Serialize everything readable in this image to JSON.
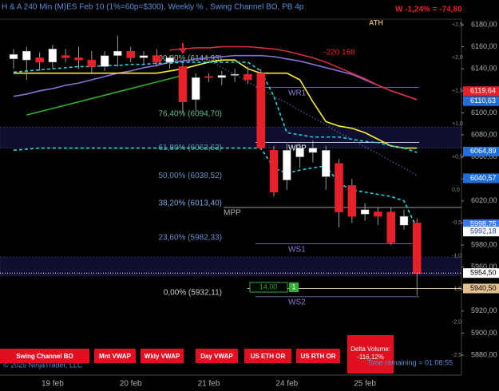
{
  "header": {
    "title": "H & A 240 Min (M)ES Feb 10  (1%=60p=$300), Weekly % , Swing Channel BO, PB 4p",
    "weekly_change": "W -1,24% = -74,80",
    "ath": "ATH"
  },
  "price_axis": {
    "ylim": [
      5880,
      6180
    ],
    "yticks": [
      {
        "value": 6180,
        "label": "6180,00"
      },
      {
        "value": 6160,
        "label": "6160,00"
      },
      {
        "value": 6140,
        "label": "6140,00"
      },
      {
        "value": 6120,
        "label": "6120,00"
      },
      {
        "value": 6100,
        "label": "6100,00"
      },
      {
        "value": 6080,
        "label": "6080,00"
      },
      {
        "value": 6060,
        "label": "6060,00"
      },
      {
        "value": 6040,
        "label": "6040,00"
      },
      {
        "value": 6020,
        "label": "6020,00"
      },
      {
        "value": 6000,
        "label": "6000,00"
      },
      {
        "value": 5980,
        "label": "5980,00"
      },
      {
        "value": 5960,
        "label": "5960,00"
      },
      {
        "value": 5940,
        "label": "5940,00"
      },
      {
        "value": 5920,
        "label": "5920,00"
      },
      {
        "value": 5900,
        "label": "5900,00"
      },
      {
        "value": 5880,
        "label": "5880,00"
      }
    ]
  },
  "percent_axis": {
    "lim": [
      -2.5,
      2.5
    ],
    "ticks": [
      {
        "value": 2.5,
        "label": "+2,5"
      },
      {
        "value": 2,
        "label": "+2,0"
      },
      {
        "value": 1.5,
        "label": "+1,5"
      },
      {
        "value": 1,
        "label": "+1,0"
      },
      {
        "value": 0.5,
        "label": "+0,5"
      },
      {
        "value": 0,
        "label": "0,0"
      },
      {
        "value": -0.5,
        "label": "-0,5"
      },
      {
        "value": -1,
        "label": "-1,0"
      },
      {
        "value": -1.5,
        "label": "-1,5"
      },
      {
        "value": -2,
        "label": "-2,0"
      },
      {
        "value": -2.5,
        "label": "-2,5"
      }
    ]
  },
  "price_tags": [
    {
      "value": 6119.64,
      "label": "6119,64",
      "color": "#e8202a",
      "text_color": "#ffffff"
    },
    {
      "value": 6110.63,
      "label": "6110,63",
      "color": "#1f6fdb",
      "text_color": "#ffffff"
    },
    {
      "value": 6064.89,
      "label": "6064,89",
      "color": "#1f6fdb",
      "text_color": "#ffffff"
    },
    {
      "value": 6040.57,
      "label": "6040,57",
      "color": "#1f6fdb",
      "text_color": "#ffffff"
    },
    {
      "value": 5998.75,
      "label": "5998,75",
      "color": "#3a7be8",
      "text_color": "#ffffff"
    },
    {
      "value": 5992.18,
      "label": "5992,18",
      "color": "#ffffff",
      "text_color": "#1f3f8f"
    },
    {
      "value": 5954.5,
      "label": "5954,50",
      "color": "#ffffff",
      "text_color": "#000000",
      "line": "dotted"
    },
    {
      "value": 5940.5,
      "label": "5940,50",
      "color": "#e3c08f",
      "text_color": "#000000",
      "line": "solid"
    }
  ],
  "fib_levels": [
    {
      "label": "100,00% (6144,93)",
      "value": 6144.93,
      "color": "#8fbf9f"
    },
    {
      "label": "76,40% (6094,70)",
      "value": 6094.7,
      "color": "#5fbf8f"
    },
    {
      "label": "61,80% (6063,63)",
      "value": 6063.63,
      "color": "#4fa8a0"
    },
    {
      "label": "50,00% (6038,52)",
      "value": 6038.52,
      "color": "#6c8ebf"
    },
    {
      "label": "38,20% (6013,40)",
      "value": 6013.4,
      "color": "#7ea6e0"
    },
    {
      "label": "23,60% (5982,33)",
      "value": 5982.33,
      "color": "#6a8fd0"
    },
    {
      "label": "0,00% (5932,11)",
      "value": 5932.11,
      "color": "#d0d0d0"
    }
  ],
  "pivots": [
    {
      "label": "WR1",
      "value": 6123,
      "color": "#8a7fd6"
    },
    {
      "label": "WPP",
      "value": 6073,
      "color": "#ffffff"
    },
    {
      "label": "MPP",
      "value": 6014,
      "color": "#b0b0b0"
    },
    {
      "label": "WS1",
      "value": 5981,
      "color": "#8a7fd6"
    },
    {
      "label": "WS2",
      "value": 5933,
      "color": "#8a7fd6"
    }
  ],
  "zones": [
    {
      "top": 6087,
      "bottom": 6068
    },
    {
      "top": 5969,
      "bottom": 5952
    }
  ],
  "x_axis": {
    "categories": [
      null,
      null,
      null,
      "19 feb",
      null,
      null,
      null,
      null,
      null,
      "20 feb",
      null,
      null,
      null,
      null,
      null,
      "21 feb",
      null,
      null,
      null,
      null,
      null,
      "24 feb",
      null,
      null,
      null,
      null,
      null,
      "25 feb",
      null,
      null,
      null,
      null
    ]
  },
  "candles": [
    {
      "open": 6149,
      "high": 6158,
      "low": 6140,
      "close": 6153
    },
    {
      "open": 6148,
      "high": 6160,
      "low": 6130,
      "close": 6156
    },
    {
      "open": 6150,
      "high": 6155,
      "low": 6138,
      "close": 6146
    },
    {
      "open": 6146,
      "high": 6162,
      "low": 6140,
      "close": 6158
    },
    {
      "open": 6152,
      "high": 6158,
      "low": 6146,
      "close": 6150
    },
    {
      "open": 6150,
      "high": 6160,
      "low": 6140,
      "close": 6148
    },
    {
      "open": 6148,
      "high": 6156,
      "low": 6135,
      "close": 6142
    },
    {
      "open": 6142,
      "high": 6156,
      "low": 6138,
      "close": 6152
    },
    {
      "open": 6152,
      "high": 6170,
      "low": 6142,
      "close": 6156
    },
    {
      "open": 6156,
      "high": 6160,
      "low": 6146,
      "close": 6150
    },
    {
      "open": 6150,
      "high": 6156,
      "low": 6144,
      "close": 6152
    },
    {
      "open": 6152,
      "high": 6158,
      "low": 6142,
      "close": 6146
    },
    {
      "open": 6146,
      "high": 6152,
      "low": 6140,
      "close": 6150
    },
    {
      "open": 6142,
      "high": 6146,
      "low": 6100,
      "close": 6110
    },
    {
      "open": 6112,
      "high": 6136,
      "low": 6102,
      "close": 6132
    },
    {
      "open": 6133,
      "high": 6136,
      "low": 6128,
      "close": 6132
    },
    {
      "open": 6132,
      "high": 6138,
      "low": 6125,
      "close": 6134
    },
    {
      "open": 6134,
      "high": 6140,
      "low": 6128,
      "close": 6135
    },
    {
      "open": 6135,
      "high": 6142,
      "low": 6126,
      "close": 6130
    },
    {
      "open": 6136,
      "high": 6140,
      "low": 6066,
      "close": 6068
    },
    {
      "open": 6066,
      "high": 6070,
      "low": 6024,
      "close": 6028
    },
    {
      "open": 6039,
      "high": 6072,
      "low": 6030,
      "close": 6066
    },
    {
      "open": 6060,
      "high": 6072,
      "low": 6050,
      "close": 6068
    },
    {
      "open": 6064,
      "high": 6075,
      "low": 6055,
      "close": 6068
    },
    {
      "open": 6042,
      "high": 6070,
      "low": 6030,
      "close": 6066
    },
    {
      "open": 6054,
      "high": 6058,
      "low": 5996,
      "close": 6010
    },
    {
      "open": 6034,
      "high": 6040,
      "low": 6000,
      "close": 6006
    },
    {
      "open": 6008,
      "high": 6018,
      "low": 6002,
      "close": 6012
    },
    {
      "open": 6010,
      "high": 6014,
      "low": 5998,
      "close": 6006
    },
    {
      "open": 6010,
      "high": 6014,
      "low": 5980,
      "close": 5982
    },
    {
      "open": 5998,
      "high": 6012,
      "low": 5994,
      "close": 6006
    },
    {
      "open": 6000,
      "high": 6004,
      "low": 5934,
      "close": 5954
    }
  ],
  "indicators": [
    {
      "color": "#2fae2f",
      "dash": "",
      "values": [
        null,
        6098,
        6101,
        6104,
        6107,
        6110,
        6113,
        6116,
        6119,
        6122,
        6125,
        6128,
        6131,
        6134,
        null,
        null,
        null,
        null,
        null,
        null,
        null,
        null,
        null,
        null,
        null,
        null,
        null,
        null,
        null,
        null,
        null,
        null
      ]
    },
    {
      "color": "#8a6fd6",
      "dash": "",
      "values": [
        6115,
        6117,
        6120,
        6122,
        6125,
        6127,
        6130,
        6133,
        6136,
        6138,
        6141,
        6143,
        6146,
        6147,
        6149,
        6150,
        6151,
        6152,
        6152,
        6152,
        6151,
        6149,
        6147,
        6144,
        6141,
        6138,
        6135,
        6130,
        6125,
        6120,
        6116,
        6112
      ]
    },
    {
      "color": "#d03040",
      "dash": "",
      "values": [
        null,
        null,
        null,
        null,
        null,
        null,
        null,
        null,
        null,
        null,
        null,
        null,
        6157,
        6158,
        6159,
        6159,
        6160,
        6160,
        6160,
        6159,
        6158,
        6156,
        6153,
        6150,
        6146,
        6141,
        6136,
        6131,
        6125,
        6120,
        6116,
        6112
      ]
    },
    {
      "color": "#5a6fbf",
      "dash": "1 3",
      "values": [
        null,
        null,
        null,
        null,
        null,
        null,
        null,
        null,
        null,
        null,
        null,
        null,
        null,
        null,
        null,
        6148,
        6141,
        6135,
        6128,
        6122,
        6115,
        6109,
        6102,
        6096,
        6089,
        6082,
        6076,
        6069,
        6063,
        6056,
        6050,
        6043
      ]
    },
    {
      "color": "#ffee33",
      "dash": "",
      "values": [
        6136,
        6136,
        6136,
        6136,
        6136,
        6136,
        6136,
        6136,
        6136,
        6136,
        6136,
        6136,
        6138,
        6140,
        6143,
        6146,
        6148,
        6148,
        6140,
        6136,
        6136,
        6136,
        6130,
        6110,
        6092,
        6088,
        6086,
        6082,
        6076,
        6070,
        6068,
        6068
      ]
    },
    {
      "color": "#22d3e0",
      "dash": "4 3",
      "values": [
        6137,
        6138,
        6139,
        6140,
        6141,
        6142,
        6142,
        6143,
        6143,
        6144,
        6144,
        6145,
        6145,
        6146,
        6146,
        6146,
        6146,
        6146,
        6146,
        6138,
        6115,
        6082,
        6080,
        6078,
        6078,
        6078,
        6076,
        6074,
        6073,
        6070,
        6068,
        6064
      ]
    },
    {
      "color": "#22d3e0",
      "dash": "4 3",
      "values": [
        6066,
        6067,
        6068,
        6068,
        6068,
        6068,
        6068,
        6068,
        6068,
        6068,
        6068,
        6068,
        6068,
        6068,
        6068,
        6068,
        6068,
        6068,
        6068,
        6068,
        6050,
        6045,
        6048,
        6050,
        6052,
        6036,
        6030,
        6028,
        6026,
        6024,
        6020,
        5995
      ]
    }
  ],
  "annotations": {
    "swing_delta": "-220 168",
    "box_value": "14,00",
    "box_count": "1"
  },
  "buttons": [
    "Swing Channel BO",
    "Mnt VWAP",
    "Wkly VWAP",
    "Day VWAP",
    "US ETH OR",
    "US RTH OR"
  ],
  "delta_volume": {
    "title": "Delta Volume:",
    "value": "-116,12%"
  },
  "footer": {
    "copyright": "© 2025 NinjaTrader, LLC",
    "time_remaining": "Time remaining = 01:08:55"
  }
}
